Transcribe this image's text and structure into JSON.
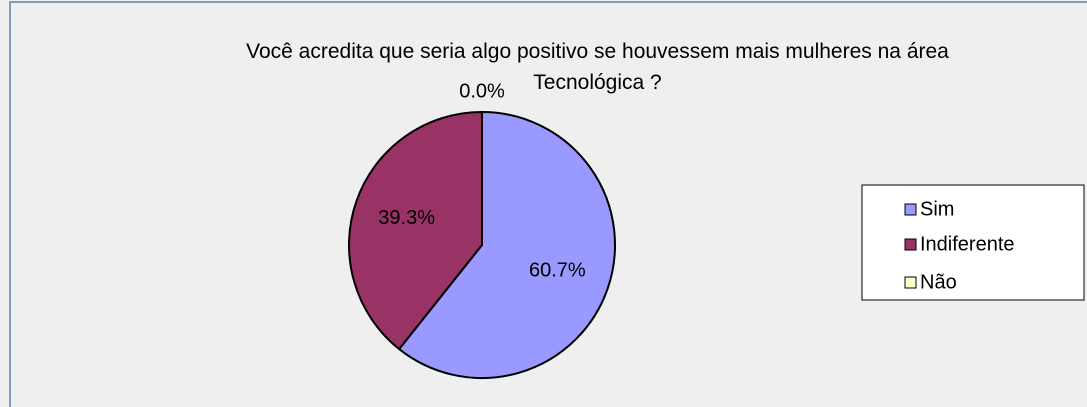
{
  "chart_data": {
    "type": "pie",
    "title": "Você acredita que seria algo positivo se houvessem mais mulheres na área Tecnológica ?",
    "categories": [
      "Sim",
      "Indiferente",
      "Não"
    ],
    "values": [
      60.7,
      39.3,
      0.0
    ],
    "value_labels": [
      "60.7%",
      "39.3%",
      "0.0%"
    ],
    "colors": [
      "#9999ff",
      "#993366",
      "#ffffcc"
    ],
    "legend": "right"
  }
}
